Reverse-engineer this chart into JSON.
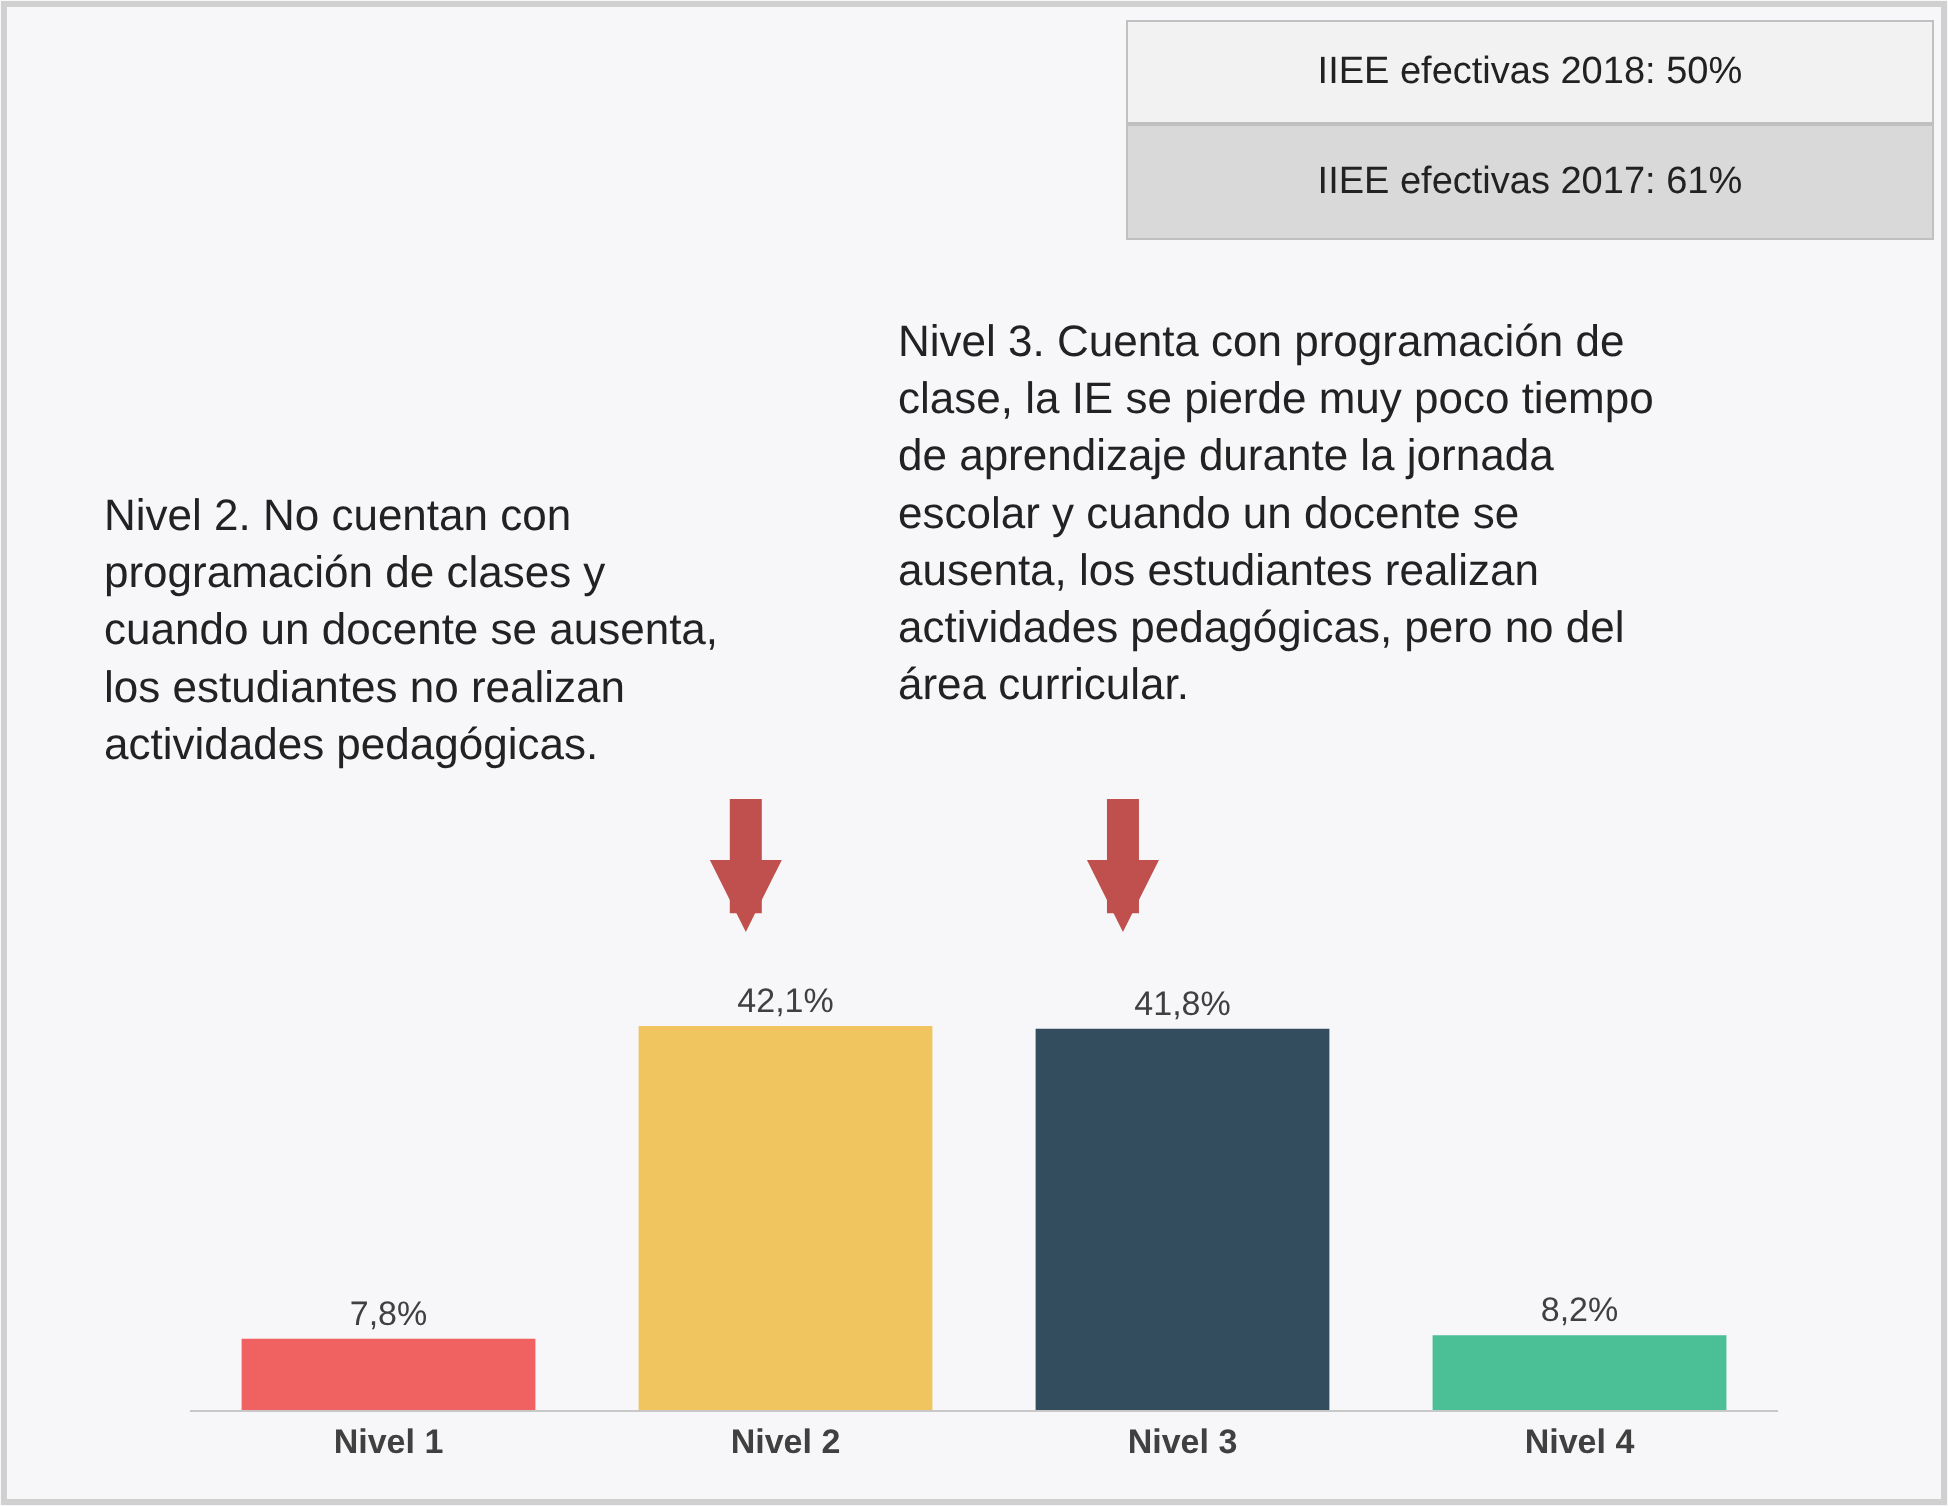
{
  "chart_data": {
    "type": "bar",
    "categories": [
      "Nivel 1",
      "Nivel 2",
      "Nivel 3",
      "Nivel 4"
    ],
    "values": [
      7.8,
      42.1,
      41.8,
      8.2
    ],
    "colors": [
      "#f06262",
      "#f0c55f",
      "#344d5e",
      "#4bbf95"
    ],
    "value_labels": [
      "7,8%",
      "42,1%",
      "41,8%",
      "8,2%"
    ],
    "annotations": [
      "IIEE efectivas 2018: 50%",
      "IIEE efectivas 2017: 61%",
      "Nivel 2. No cuentan con programación de clases y cuando un docente se ausenta, los estudiantes no realizan actividades pedagógicas.",
      "Nivel 3. Cuenta con programación de clase, la IE se pierde muy poco tiempo de aprendizaje durante la jornada escolar y cuando un docente se ausenta, los estudiantes realizan actividades pedagógicas, pero no del área curricular."
    ]
  }
}
